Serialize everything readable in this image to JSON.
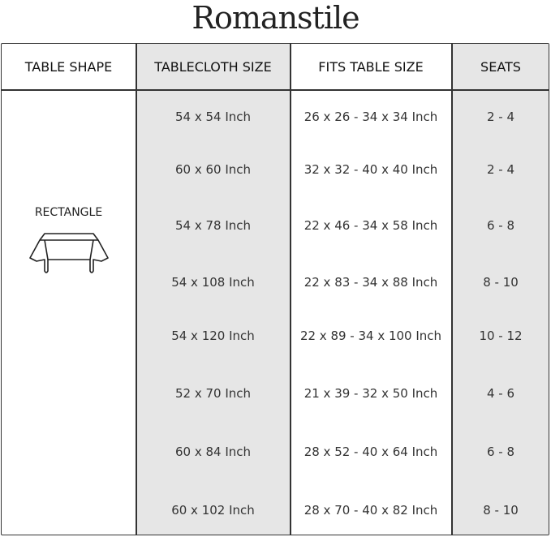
{
  "brand": "Romanstile",
  "headers": [
    "TABLE SHAPE",
    "TABLECLOTH SIZE",
    "FITS TABLE SIZE",
    "SEATS"
  ],
  "shape": {
    "label": "RECTANGLE",
    "icon": "rectangle-table-icon"
  },
  "rows": [
    {
      "size": "54 x 54 Inch",
      "fits": "26 x 26 - 34 x 34 Inch",
      "seats": "2 - 4"
    },
    {
      "size": "60 x 60 Inch",
      "fits": "32 x 32 - 40 x 40 Inch",
      "seats": "2 - 4"
    },
    {
      "size": "54 x 78 Inch",
      "fits": "22 x 46 - 34 x 58 Inch",
      "seats": "6 - 8"
    },
    {
      "size": "54 x 108 Inch",
      "fits": "22 x 83 - 34 x 88 Inch",
      "seats": "8 - 10"
    },
    {
      "size": "54 x 120 Inch",
      "fits": "22 x 89 - 34 x 100 Inch",
      "seats": "10 - 12"
    },
    {
      "size": "52 x 70 Inch",
      "fits": "21 x 39 - 32 x 50 Inch",
      "seats": "4 - 6"
    },
    {
      "size": "60 x 84 Inch",
      "fits": "28 x 52 - 40 x 64 Inch",
      "seats": "6 - 8"
    },
    {
      "size": "60 x 102 Inch",
      "fits": "28 x 70 - 40 x 82 Inch",
      "seats": "8 - 10"
    }
  ],
  "colors": {
    "shaded_column": "#e6e6e6",
    "border": "#333333"
  }
}
